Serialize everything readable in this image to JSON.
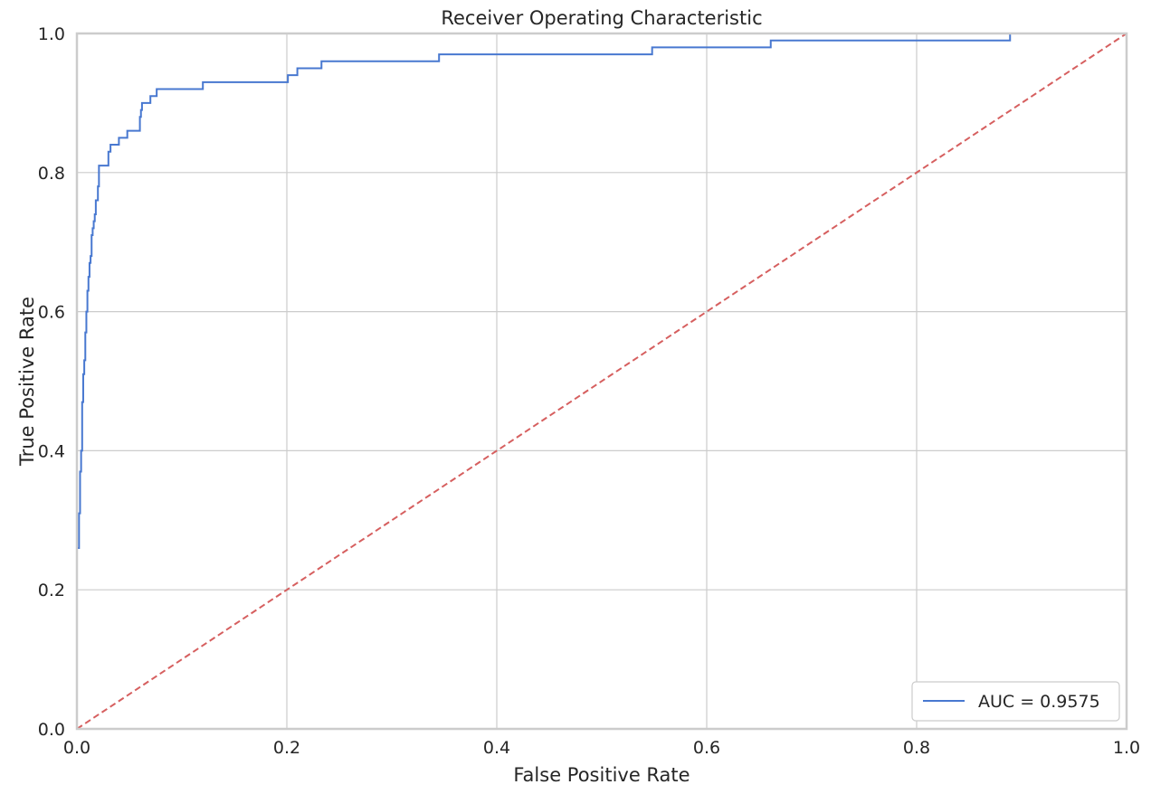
{
  "chart_data": {
    "type": "line",
    "title": "Receiver Operating Characteristic",
    "xlabel": "False Positive Rate",
    "ylabel": "True Positive Rate",
    "xlim": [
      0,
      1
    ],
    "ylim": [
      0,
      1
    ],
    "xticks": [
      "0.0",
      "0.2",
      "0.4",
      "0.6",
      "0.8",
      "1.0"
    ],
    "yticks": [
      "0.0",
      "0.2",
      "0.4",
      "0.6",
      "0.8",
      "1.0"
    ],
    "grid": true,
    "legend_position": "bottom-right",
    "series": [
      {
        "name": "AUC = 0.9575",
        "style": "solid",
        "color": "#4878d0",
        "step": true,
        "points": [
          [
            0.0,
            0.0
          ],
          [
            0.0,
            0.26
          ],
          [
            0.002,
            0.26
          ],
          [
            0.002,
            0.31
          ],
          [
            0.003,
            0.31
          ],
          [
            0.003,
            0.37
          ],
          [
            0.004,
            0.37
          ],
          [
            0.004,
            0.4
          ],
          [
            0.005,
            0.4
          ],
          [
            0.005,
            0.47
          ],
          [
            0.006,
            0.47
          ],
          [
            0.006,
            0.51
          ],
          [
            0.007,
            0.51
          ],
          [
            0.007,
            0.53
          ],
          [
            0.008,
            0.53
          ],
          [
            0.008,
            0.57
          ],
          [
            0.009,
            0.57
          ],
          [
            0.009,
            0.6
          ],
          [
            0.01,
            0.6
          ],
          [
            0.01,
            0.63
          ],
          [
            0.011,
            0.63
          ],
          [
            0.011,
            0.65
          ],
          [
            0.012,
            0.65
          ],
          [
            0.012,
            0.67
          ],
          [
            0.013,
            0.67
          ],
          [
            0.013,
            0.68
          ],
          [
            0.014,
            0.68
          ],
          [
            0.014,
            0.71
          ],
          [
            0.015,
            0.71
          ],
          [
            0.015,
            0.72
          ],
          [
            0.016,
            0.72
          ],
          [
            0.016,
            0.73
          ],
          [
            0.017,
            0.73
          ],
          [
            0.017,
            0.74
          ],
          [
            0.018,
            0.74
          ],
          [
            0.018,
            0.76
          ],
          [
            0.02,
            0.76
          ],
          [
            0.02,
            0.78
          ],
          [
            0.021,
            0.78
          ],
          [
            0.021,
            0.81
          ],
          [
            0.03,
            0.81
          ],
          [
            0.03,
            0.83
          ],
          [
            0.032,
            0.83
          ],
          [
            0.032,
            0.84
          ],
          [
            0.04,
            0.84
          ],
          [
            0.04,
            0.85
          ],
          [
            0.048,
            0.85
          ],
          [
            0.048,
            0.86
          ],
          [
            0.06,
            0.86
          ],
          [
            0.06,
            0.88
          ],
          [
            0.061,
            0.88
          ],
          [
            0.061,
            0.89
          ],
          [
            0.062,
            0.89
          ],
          [
            0.062,
            0.9
          ],
          [
            0.07,
            0.9
          ],
          [
            0.07,
            0.91
          ],
          [
            0.076,
            0.91
          ],
          [
            0.076,
            0.92
          ],
          [
            0.12,
            0.92
          ],
          [
            0.12,
            0.93
          ],
          [
            0.201,
            0.93
          ],
          [
            0.201,
            0.94
          ],
          [
            0.21,
            0.94
          ],
          [
            0.21,
            0.95
          ],
          [
            0.233,
            0.95
          ],
          [
            0.233,
            0.96
          ],
          [
            0.345,
            0.96
          ],
          [
            0.345,
            0.97
          ],
          [
            0.548,
            0.97
          ],
          [
            0.548,
            0.98
          ],
          [
            0.661,
            0.98
          ],
          [
            0.661,
            0.99
          ],
          [
            0.889,
            0.99
          ],
          [
            0.889,
            1.0
          ],
          [
            1.0,
            1.0
          ]
        ]
      },
      {
        "name": "",
        "style": "dashed",
        "color": "#d65f5f",
        "points": [
          [
            0.0,
            0.0
          ],
          [
            1.0,
            1.0
          ]
        ]
      }
    ]
  }
}
